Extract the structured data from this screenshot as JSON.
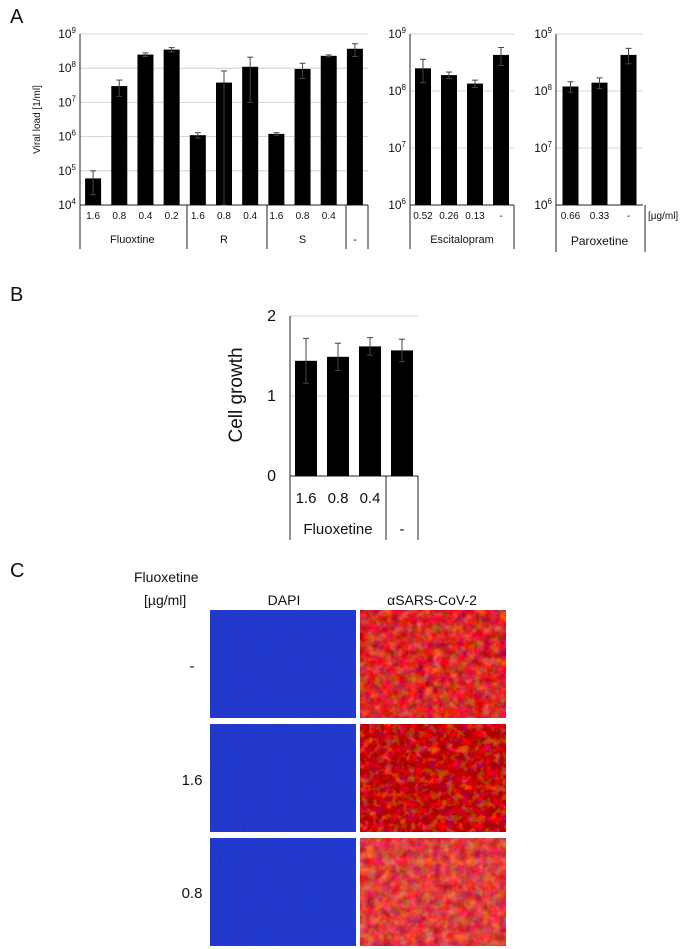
{
  "panel_labels": {
    "a": "A",
    "b": "B",
    "c": "C"
  },
  "colors": {
    "bar": "#000000",
    "axis": "#222222",
    "grid": "#c8c8c8",
    "dapi": "#0a1a86",
    "sars": "#7a0a0c",
    "sars_hot": "#e02020"
  },
  "chart_data": [
    {
      "type": "bar",
      "ylabel": "Viral load [1/ml]",
      "log_scale": true,
      "ylim": [
        10000,
        1000000000
      ],
      "y_ticks": [
        {
          "base": "10",
          "exp": "4"
        },
        {
          "base": "10",
          "exp": "5"
        },
        {
          "base": "10",
          "exp": "6"
        },
        {
          "base": "10",
          "exp": "7"
        },
        {
          "base": "10",
          "exp": "8"
        },
        {
          "base": "10",
          "exp": "9"
        }
      ],
      "grid": true,
      "categories": [
        "1.6",
        "0.8",
        "0.4",
        "0.2",
        "1.6",
        "0.8",
        "0.4",
        "1.6",
        "0.8",
        "0.4",
        ""
      ],
      "values": [
        60000,
        30000000,
        250000000,
        350000000,
        1100000,
        38000000,
        110000000,
        1200000,
        95000000,
        230000000,
        370000000
      ],
      "error": [
        40000,
        15000000,
        30000000,
        50000000,
        200000,
        45000000,
        100000000,
        100000,
        45000000,
        15000000,
        150000000
      ],
      "groups": [
        {
          "label": "Fluoxtine",
          "start": 0,
          "end": 3
        },
        {
          "label": "R",
          "start": 4,
          "end": 6
        },
        {
          "label": "S",
          "start": 7,
          "end": 9
        },
        {
          "label": "-",
          "start": 10,
          "end": 10
        }
      ]
    },
    {
      "type": "bar",
      "log_scale": true,
      "ylim": [
        1000000,
        1000000000
      ],
      "y_ticks": [
        {
          "base": "10",
          "exp": "6"
        },
        {
          "base": "10",
          "exp": "7"
        },
        {
          "base": "10",
          "exp": "8"
        },
        {
          "base": "10",
          "exp": "9"
        }
      ],
      "grid": true,
      "categories": [
        "0.52",
        "0.26",
        "0.13",
        "-"
      ],
      "values": [
        250000000,
        190000000,
        135000000,
        430000000
      ],
      "error": [
        110000000,
        25000000,
        20000000,
        150000000
      ],
      "groups": [
        {
          "label": "Escitalopram",
          "start": 0,
          "end": 3
        }
      ]
    },
    {
      "type": "bar",
      "log_scale": true,
      "ylim": [
        1000000,
        1000000000
      ],
      "y_ticks": [
        {
          "base": "10",
          "exp": "6"
        },
        {
          "base": "10",
          "exp": "7"
        },
        {
          "base": "10",
          "exp": "8"
        },
        {
          "base": "10",
          "exp": "9"
        }
      ],
      "grid": true,
      "unit_label": "[µg/ml]",
      "categories": [
        "0.66",
        "0.33",
        "-"
      ],
      "values": [
        120000000,
        140000000,
        430000000
      ],
      "error": [
        25000000,
        30000000,
        130000000
      ],
      "groups": [
        {
          "label": "Paroxetine",
          "start": 0,
          "end": 2
        }
      ]
    },
    {
      "type": "bar",
      "ylabel": "Cell growth",
      "log_scale": false,
      "ylim": [
        0,
        2
      ],
      "y_ticks": [
        "0",
        "1",
        "2"
      ],
      "grid": true,
      "categories": [
        "1.6",
        "0.8",
        "0.4",
        ""
      ],
      "values": [
        1.44,
        1.49,
        1.62,
        1.57
      ],
      "error": [
        0.28,
        0.17,
        0.11,
        0.14
      ],
      "groups": [
        {
          "label": "Fluoxetine",
          "start": 0,
          "end": 2
        },
        {
          "label": "-",
          "start": 3,
          "end": 3
        }
      ]
    }
  ],
  "microscopy": {
    "row_header_line1": "Fluoxetine",
    "row_header_line2": "[µg/ml]",
    "column_labels": [
      "DAPI",
      "αSARS-CoV-2"
    ],
    "rows": [
      "-",
      "1.6",
      "0.8"
    ]
  }
}
